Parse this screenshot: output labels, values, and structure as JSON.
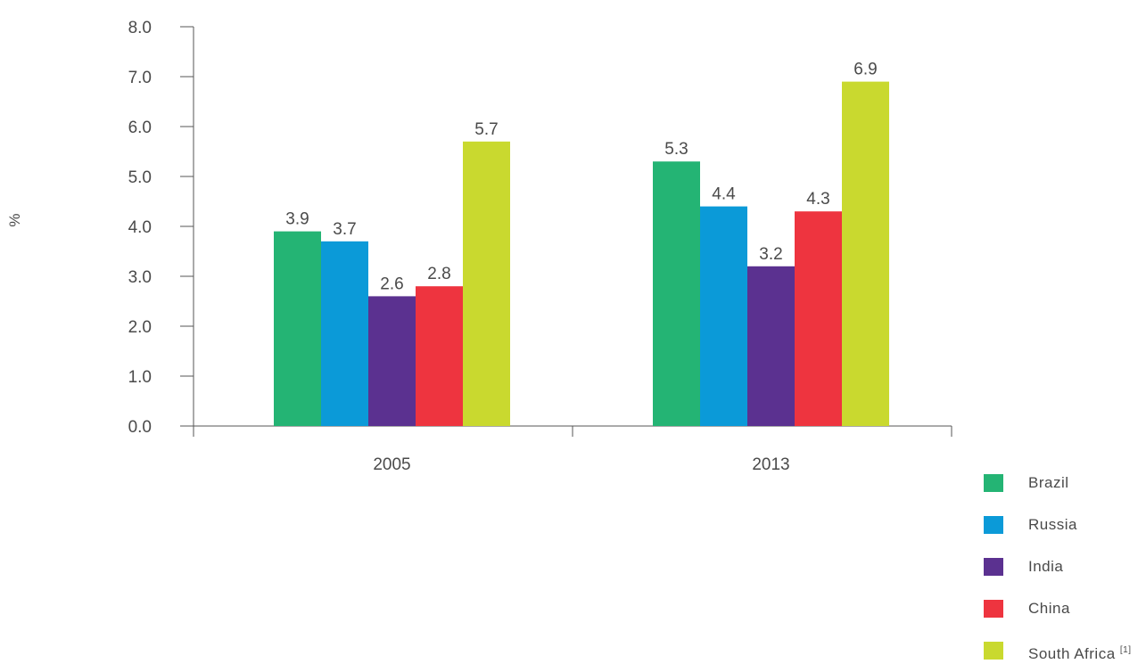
{
  "chart_data": {
    "type": "bar",
    "categories": [
      "2005",
      "2013"
    ],
    "series": [
      {
        "name": "Brazil",
        "values": [
          3.9,
          5.3
        ],
        "color": "#24b474"
      },
      {
        "name": "Russia",
        "values": [
          3.7,
          4.4
        ],
        "color": "#0b9ad8"
      },
      {
        "name": "India",
        "values": [
          2.6,
          3.2
        ],
        "color": "#5b3190"
      },
      {
        "name": "China",
        "values": [
          2.8,
          4.3
        ],
        "color": "#ee343f"
      },
      {
        "name": "South Africa",
        "name_sup": "[1]",
        "values": [
          5.7,
          6.9
        ],
        "color": "#c9d92f"
      }
    ],
    "ylabel": "%",
    "ylim": [
      0,
      8
    ],
    "yticks": [
      "0.0",
      "1.0",
      "2.0",
      "3.0",
      "4.0",
      "5.0",
      "6.0",
      "7.0",
      "8.0"
    ],
    "grid": false,
    "legend": "bottom-right"
  }
}
